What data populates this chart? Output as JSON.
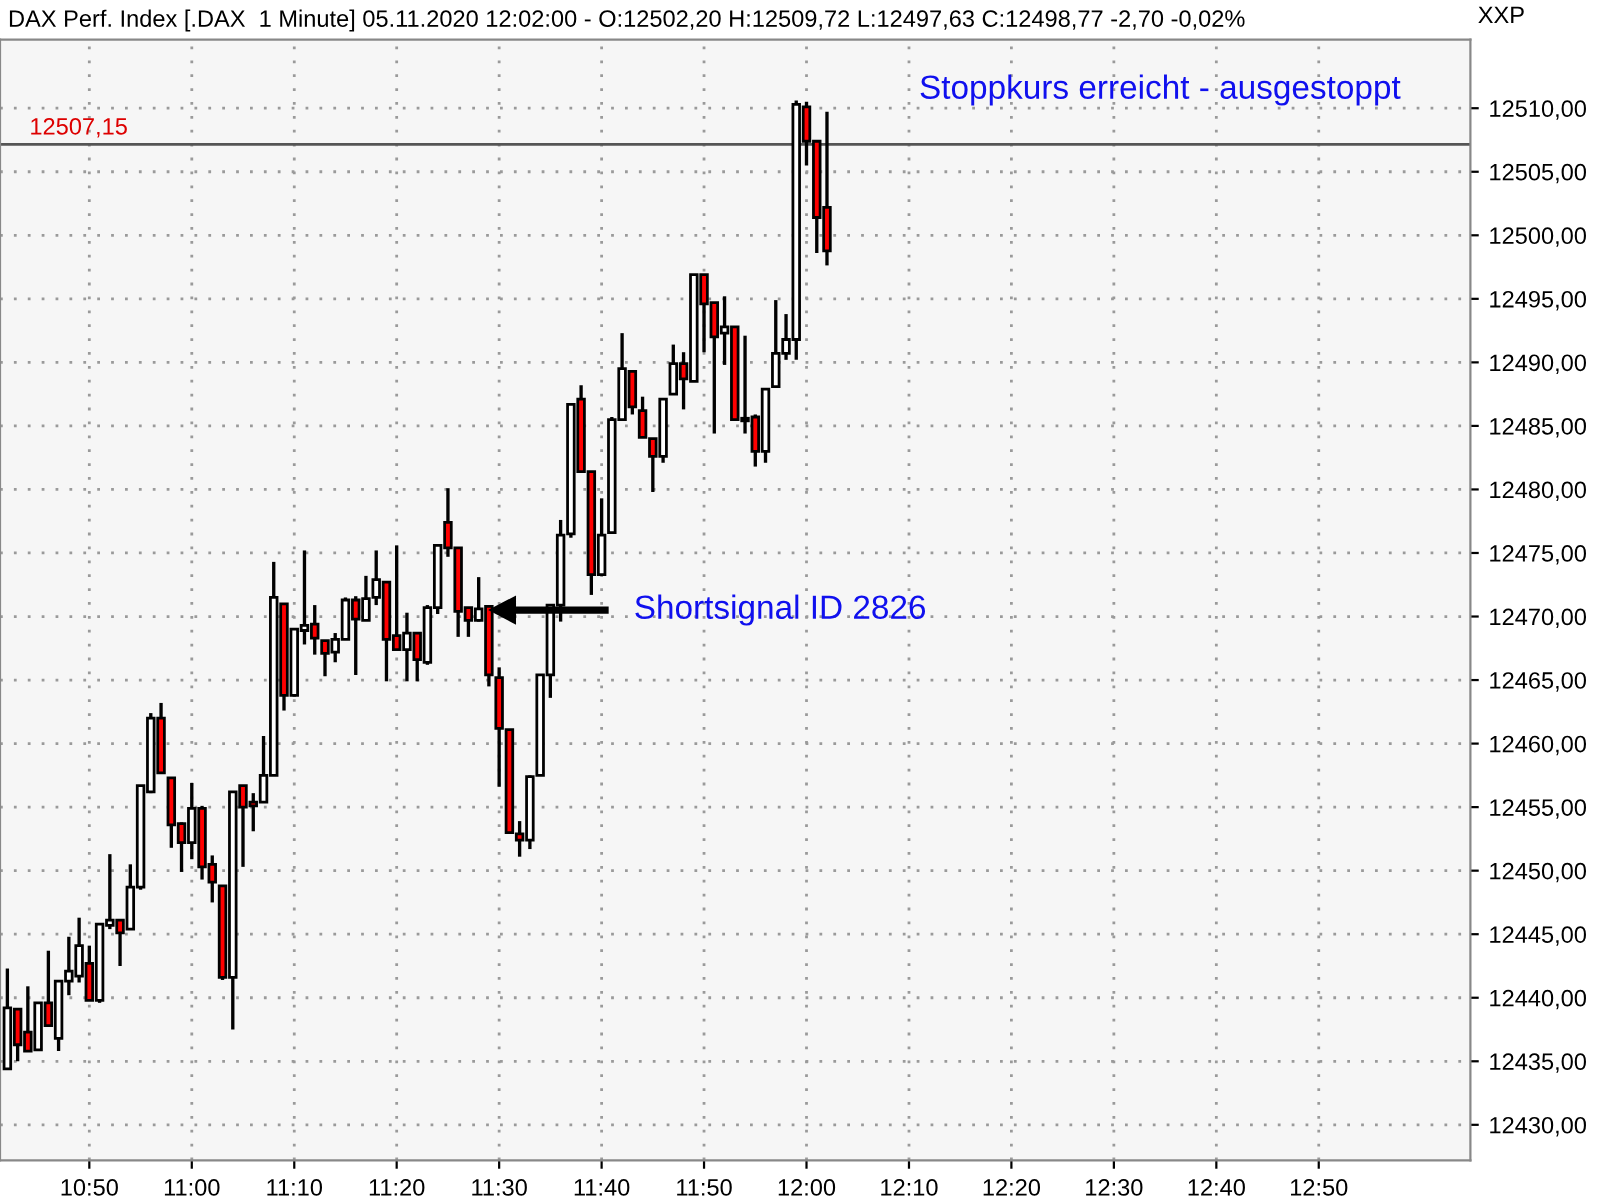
{
  "chart_data": {
    "type": "candlestick",
    "title": "DAX Perf. Index [.DAX  1 Minute] 05.11.2020 12:02:00 - O:12502,20 H:12509,72 L:12497,63 C:12498,77 -2,70 -0,02%",
    "ylabel": "XXP",
    "x": [
      10.7,
      10.7167,
      10.7333,
      10.75,
      10.7667,
      10.7833,
      10.8,
      10.8167,
      10.8333,
      10.85,
      10.8667,
      10.8833,
      10.9,
      10.9167,
      10.9333,
      10.95,
      10.9667,
      10.9833,
      11,
      11.0167,
      11.0333,
      11.05,
      11.0667,
      11.0833,
      11.1,
      11.1167,
      11.1333,
      11.15,
      11.1667,
      11.1833,
      11.2,
      11.2167,
      11.2333,
      11.25,
      11.2667,
      11.2833,
      11.3,
      11.3167,
      11.3333,
      11.35,
      11.3667,
      11.3833,
      11.4,
      11.4167,
      11.4333,
      11.45,
      11.4667,
      11.4833,
      11.5,
      11.5167,
      11.5333,
      11.55,
      11.5667,
      11.5833,
      11.6,
      11.6167,
      11.6333,
      11.65,
      11.6667,
      11.6833,
      11.7,
      11.7167,
      11.7333,
      11.75,
      11.7667,
      11.7833,
      11.8,
      11.8167,
      11.8333,
      11.85,
      11.8667,
      11.8833,
      11.9,
      11.9167,
      11.9333,
      11.95,
      11.9667,
      11.9833,
      12,
      12.0167,
      12.0333
    ],
    "ohlc": [
      [
        12434.4,
        12442.3,
        12434.4,
        12439.2
      ],
      [
        12439.1,
        12439.1,
        12435.0,
        12436.3
      ],
      [
        12437.3,
        12440.9,
        12435.8,
        12435.8
      ],
      [
        12435.9,
        12439.6,
        12435.9,
        12439.6
      ],
      [
        12439.6,
        12443.7,
        12437.8,
        12437.8
      ],
      [
        12436.8,
        12441.3,
        12435.8,
        12441.3
      ],
      [
        12441.3,
        12444.8,
        12440.2,
        12442.1
      ],
      [
        12441.7,
        12446.3,
        12441.2,
        12444.1
      ],
      [
        12442.7,
        12444.1,
        12439.8,
        12439.8
      ],
      [
        12439.8,
        12445.8,
        12439.6,
        12445.8
      ],
      [
        12445.7,
        12451.3,
        12445.4,
        12446.1
      ],
      [
        12446.1,
        12446.1,
        12442.5,
        12445.1
      ],
      [
        12445.4,
        12450.5,
        12445.4,
        12448.7
      ],
      [
        12448.7,
        12456.7,
        12448.5,
        12456.7
      ],
      [
        12456.2,
        12462.4,
        12456.1,
        12462.0
      ],
      [
        12462.0,
        12463.2,
        12457.7,
        12457.7
      ],
      [
        12457.3,
        12457.3,
        12451.8,
        12453.6
      ],
      [
        12453.7,
        12453.8,
        12449.9,
        12452.2
      ],
      [
        12452.2,
        12456.9,
        12450.9,
        12454.9
      ],
      [
        12454.9,
        12455.1,
        12449.3,
        12450.3
      ],
      [
        12450.5,
        12451.2,
        12447.5,
        12449.1
      ],
      [
        12448.8,
        12448.8,
        12441.4,
        12441.6
      ],
      [
        12441.6,
        12456.2,
        12437.5,
        12456.2
      ],
      [
        12456.7,
        12456.7,
        12450.3,
        12455.0
      ],
      [
        12455.4,
        12456.1,
        12453.1,
        12455.1
      ],
      [
        12455.4,
        12460.6,
        12455.4,
        12457.5
      ],
      [
        12457.5,
        12474.3,
        12457.5,
        12471.5
      ],
      [
        12471.0,
        12471.0,
        12462.6,
        12463.8
      ],
      [
        12463.8,
        12469.0,
        12463.7,
        12469.0
      ],
      [
        12468.9,
        12475.2,
        12467.8,
        12469.3
      ],
      [
        12469.4,
        12470.9,
        12467.0,
        12468.3
      ],
      [
        12468.1,
        12468.1,
        12465.3,
        12467.1
      ],
      [
        12467.2,
        12468.7,
        12466.4,
        12468.2
      ],
      [
        12468.2,
        12471.5,
        12468.2,
        12471.3
      ],
      [
        12471.3,
        12471.6,
        12465.4,
        12469.8
      ],
      [
        12469.7,
        12473.2,
        12469.7,
        12471.4
      ],
      [
        12471.5,
        12475.2,
        12470.9,
        12472.9
      ],
      [
        12472.7,
        12472.7,
        12464.9,
        12468.2
      ],
      [
        12468.5,
        12475.6,
        12467.3,
        12467.4
      ],
      [
        12467.4,
        12470.3,
        12464.9,
        12468.7
      ],
      [
        12468.7,
        12468.7,
        12464.9,
        12466.6
      ],
      [
        12466.4,
        12470.9,
        12466.2,
        12470.7
      ],
      [
        12470.7,
        12475.6,
        12470.2,
        12475.6
      ],
      [
        12477.4,
        12480.1,
        12474.7,
        12475.4
      ],
      [
        12475.4,
        12475.4,
        12468.4,
        12470.4
      ],
      [
        12470.7,
        12470.7,
        12468.4,
        12469.7
      ],
      [
        12469.7,
        12473.1,
        12469.6,
        12470.6
      ],
      [
        12470.8,
        12470.8,
        12464.5,
        12465.4
      ],
      [
        12465.2,
        12466.0,
        12456.6,
        12461.2
      ],
      [
        12461.1,
        12461.1,
        12453.0,
        12453.0
      ],
      [
        12452.9,
        12453.9,
        12451.1,
        12452.4
      ],
      [
        12452.4,
        12457.5,
        12451.7,
        12457.4
      ],
      [
        12457.5,
        12465.4,
        12457.5,
        12465.4
      ],
      [
        12465.4,
        12470.9,
        12463.6,
        12470.9
      ],
      [
        12470.9,
        12477.6,
        12469.6,
        12476.4
      ],
      [
        12476.5,
        12486.7,
        12476.2,
        12486.7
      ],
      [
        12487.1,
        12488.2,
        12481.4,
        12481.4
      ],
      [
        12481.4,
        12481.4,
        12471.7,
        12473.3
      ],
      [
        12473.3,
        12479.3,
        12473.3,
        12476.4
      ],
      [
        12476.6,
        12485.7,
        12476.5,
        12485.5
      ],
      [
        12485.5,
        12492.3,
        12485.4,
        12489.5
      ],
      [
        12489.3,
        12489.3,
        12485.9,
        12486.5
      ],
      [
        12486.2,
        12487.3,
        12484.1,
        12484.1
      ],
      [
        12484.0,
        12484.0,
        12479.8,
        12482.6
      ],
      [
        12482.6,
        12487.1,
        12482.1,
        12487.1
      ],
      [
        12487.5,
        12491.4,
        12487.5,
        12489.9
      ],
      [
        12489.9,
        12490.8,
        12486.3,
        12488.7
      ],
      [
        12488.5,
        12496.9,
        12488.5,
        12496.9
      ],
      [
        12496.9,
        12496.9,
        12490.8,
        12494.6
      ],
      [
        12494.7,
        12494.7,
        12484.4,
        12492.0
      ],
      [
        12492.3,
        12495.2,
        12489.8,
        12492.8
      ],
      [
        12492.8,
        12492.8,
        12485.5,
        12485.5
      ],
      [
        12485.6,
        12492.1,
        12484.4,
        12485.4
      ],
      [
        12485.7,
        12485.9,
        12481.8,
        12483.0
      ],
      [
        12483.0,
        12487.9,
        12482.1,
        12487.9
      ],
      [
        12488.1,
        12494.9,
        12488.1,
        12490.7
      ],
      [
        12490.7,
        12493.8,
        12490.2,
        12491.8
      ],
      [
        12491.8,
        12510.6,
        12490.2,
        12510.3
      ],
      [
        12510.1,
        12510.5,
        12505.5,
        12507.4
      ],
      [
        12507.4,
        12507.5,
        12498.6,
        12501.4
      ],
      [
        12502.2,
        12509.72,
        12497.63,
        12498.77
      ]
    ],
    "xlim": [
      10.688,
      13.08
    ],
    "xticks": [
      {
        "value": 10.8333,
        "label": "10:50"
      },
      {
        "value": 11,
        "label": "11:00"
      },
      {
        "value": 11.1667,
        "label": "11:10"
      },
      {
        "value": 11.3333,
        "label": "11:20"
      },
      {
        "value": 11.5,
        "label": "11:30"
      },
      {
        "value": 11.6667,
        "label": "11:40"
      },
      {
        "value": 11.8333,
        "label": "11:50"
      },
      {
        "value": 12,
        "label": "12:00"
      },
      {
        "value": 12.1667,
        "label": "12:10"
      },
      {
        "value": 12.3333,
        "label": "12:20"
      },
      {
        "value": 12.5,
        "label": "12:30"
      },
      {
        "value": 12.6667,
        "label": "12:40"
      },
      {
        "value": 12.8333,
        "label": "12:50"
      }
    ],
    "ylim": [
      12427.2,
      12515.4
    ],
    "yticks": [
      {
        "value": 12430,
        "label": "12430,00"
      },
      {
        "value": 12435,
        "label": "12435,00"
      },
      {
        "value": 12440,
        "label": "12440,00"
      },
      {
        "value": 12445,
        "label": "12445,00"
      },
      {
        "value": 12450,
        "label": "12450,00"
      },
      {
        "value": 12455,
        "label": "12455,00"
      },
      {
        "value": 12460,
        "label": "12460,00"
      },
      {
        "value": 12465,
        "label": "12465,00"
      },
      {
        "value": 12470,
        "label": "12470,00"
      },
      {
        "value": 12475,
        "label": "12475,00"
      },
      {
        "value": 12480,
        "label": "12480,00"
      },
      {
        "value": 12485,
        "label": "12485,00"
      },
      {
        "value": 12490,
        "label": "12490,00"
      },
      {
        "value": 12495,
        "label": "12495,00"
      },
      {
        "value": 12500,
        "label": "12500,00"
      },
      {
        "value": 12505,
        "label": "12505,00"
      },
      {
        "value": 12510,
        "label": "12510,00"
      }
    ],
    "grid": true,
    "ref_lines": [
      {
        "axis": "y",
        "value": 12507.15,
        "label": "12507,15",
        "color": "#555555"
      }
    ],
    "annotations": [
      "Shortsignal ID 2826",
      "Stoppkurs erreicht - ausgestoppt"
    ]
  }
}
